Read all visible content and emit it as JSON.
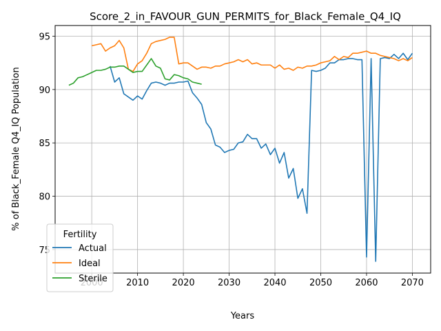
{
  "chart_data": {
    "type": "line",
    "title": "Score_2_in_FAVOUR_GUN_PERMITS_for_Black_Female_Q4_IQ",
    "xlabel": "Years",
    "ylabel": "% of Black_Female Q4_IQ Population",
    "xlim": [
      1992,
      2074
    ],
    "ylim": [
      72.8,
      96.0
    ],
    "xticks": [
      2000,
      2010,
      2020,
      2030,
      2040,
      2050,
      2060,
      2070
    ],
    "yticks": [
      75,
      80,
      85,
      90,
      95
    ],
    "grid": true,
    "legend": {
      "title": "Fertility",
      "placement": "lower-left"
    },
    "series": [
      {
        "name": "Actual",
        "color": "#1f77b4",
        "x": [
          2004,
          2005,
          2006,
          2007,
          2008,
          2009,
          2010,
          2011,
          2012,
          2013,
          2014,
          2015,
          2016,
          2017,
          2018,
          2019,
          2020,
          2021,
          2022,
          2023,
          2024,
          2025,
          2026,
          2027,
          2028,
          2029,
          2030,
          2031,
          2032,
          2033,
          2034,
          2035,
          2036,
          2037,
          2038,
          2039,
          2040,
          2041,
          2042,
          2043,
          2044,
          2045,
          2046,
          2047,
          2048,
          2049,
          2050,
          2051,
          2052,
          2053,
          2054,
          2055,
          2056,
          2057,
          2058,
          2059,
          2060,
          2061,
          2062,
          2063,
          2064,
          2065,
          2066,
          2067,
          2068,
          2069,
          2070
        ],
        "values": [
          92.2,
          90.7,
          91.1,
          89.6,
          89.3,
          89.0,
          89.4,
          89.1,
          89.9,
          90.6,
          90.7,
          90.6,
          90.4,
          90.6,
          90.6,
          90.7,
          90.7,
          90.8,
          89.7,
          89.2,
          88.6,
          86.9,
          86.3,
          84.8,
          84.6,
          84.1,
          84.3,
          84.4,
          85.0,
          85.1,
          85.8,
          85.4,
          85.4,
          84.5,
          84.9,
          83.9,
          84.5,
          83.1,
          84.1,
          81.7,
          82.6,
          79.8,
          80.7,
          78.4,
          91.8,
          91.7,
          91.8,
          92.0,
          92.5,
          92.5,
          92.8,
          92.8,
          92.9,
          92.9,
          92.8,
          92.8,
          74.3,
          92.9,
          73.9,
          92.9,
          93.0,
          92.9,
          93.3,
          92.9,
          93.4,
          92.8,
          93.4
        ]
      },
      {
        "name": "Ideal",
        "color": "#ff7f0e",
        "x": [
          2000,
          2001,
          2002,
          2003,
          2004,
          2005,
          2006,
          2007,
          2008,
          2009,
          2010,
          2011,
          2012,
          2013,
          2014,
          2015,
          2016,
          2017,
          2018,
          2019,
          2020,
          2021,
          2022,
          2023,
          2024,
          2025,
          2026,
          2027,
          2028,
          2029,
          2030,
          2031,
          2032,
          2033,
          2034,
          2035,
          2036,
          2037,
          2038,
          2039,
          2040,
          2041,
          2042,
          2043,
          2044,
          2045,
          2046,
          2047,
          2048,
          2049,
          2050,
          2051,
          2052,
          2053,
          2054,
          2055,
          2056,
          2057,
          2058,
          2059,
          2060,
          2061,
          2062,
          2063,
          2064,
          2065,
          2066,
          2067,
          2068,
          2069,
          2070
        ],
        "values": [
          94.1,
          94.2,
          94.3,
          93.6,
          93.9,
          94.1,
          94.6,
          93.9,
          91.9,
          91.7,
          92.4,
          92.7,
          93.4,
          94.3,
          94.5,
          94.6,
          94.7,
          94.9,
          94.9,
          92.4,
          92.5,
          92.5,
          92.2,
          91.9,
          92.1,
          92.1,
          92.0,
          92.2,
          92.2,
          92.4,
          92.5,
          92.6,
          92.8,
          92.6,
          92.8,
          92.4,
          92.5,
          92.3,
          92.3,
          92.3,
          92.0,
          92.3,
          91.9,
          92.0,
          91.8,
          92.1,
          92.0,
          92.2,
          92.2,
          92.3,
          92.5,
          92.6,
          92.7,
          93.1,
          92.8,
          93.1,
          93.0,
          93.4,
          93.4,
          93.5,
          93.6,
          93.4,
          93.4,
          93.2,
          93.1,
          93.0,
          92.9,
          92.7,
          92.9,
          92.7,
          93.0
        ]
      },
      {
        "name": "Sterile",
        "color": "#2ca02c",
        "x": [
          1995,
          1996,
          1997,
          1998,
          1999,
          2000,
          2001,
          2002,
          2003,
          2004,
          2005,
          2006,
          2007,
          2008,
          2009,
          2010,
          2011,
          2012,
          2013,
          2014,
          2015,
          2016,
          2017,
          2018,
          2019,
          2020,
          2021,
          2022,
          2023,
          2024
        ],
        "values": [
          90.4,
          90.6,
          91.1,
          91.2,
          91.4,
          91.6,
          91.8,
          91.8,
          91.9,
          92.1,
          92.1,
          92.2,
          92.2,
          91.9,
          91.6,
          91.7,
          91.7,
          92.3,
          92.9,
          92.2,
          92.0,
          91.0,
          90.9,
          91.4,
          91.3,
          91.1,
          91.0,
          90.7,
          90.6,
          90.5
        ]
      }
    ]
  }
}
